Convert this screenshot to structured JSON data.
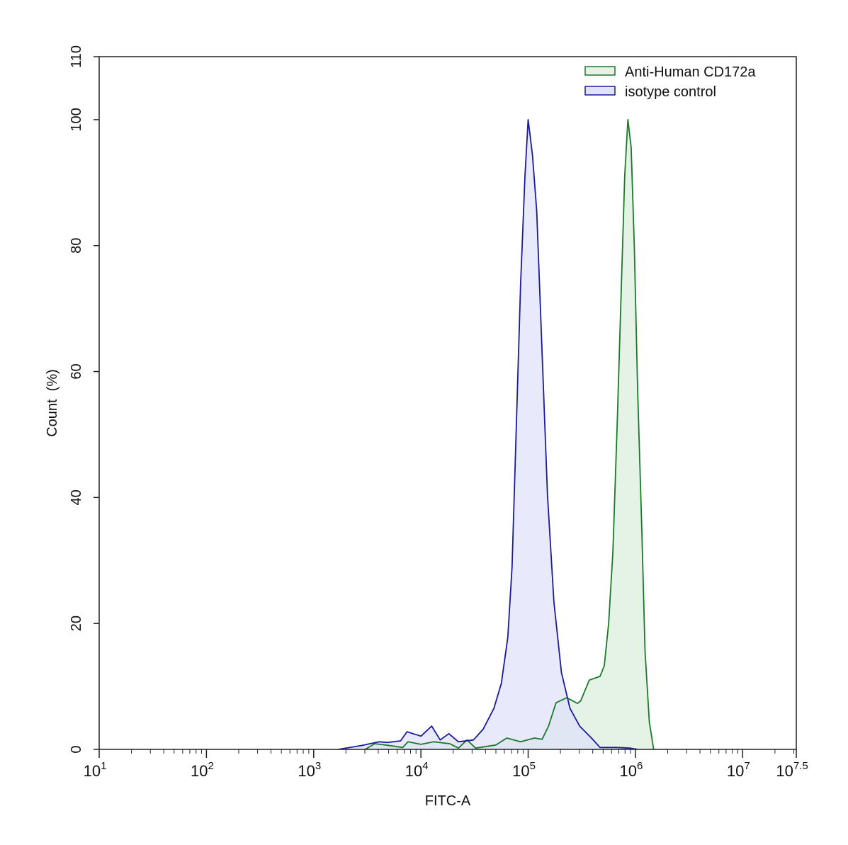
{
  "chart_data": {
    "type": "area",
    "title": "",
    "xlabel": "FITC-A",
    "ylabel": "Count  (%)",
    "x_scale": "log10",
    "xlim_log10": [
      1,
      7.5
    ],
    "ylim": [
      0,
      110
    ],
    "grid": false,
    "legend_position": "top-right",
    "x_ticks": [
      {
        "base": "10",
        "exp": "1",
        "log": 1
      },
      {
        "base": "10",
        "exp": "2",
        "log": 2
      },
      {
        "base": "10",
        "exp": "3",
        "log": 3
      },
      {
        "base": "10",
        "exp": "4",
        "log": 4
      },
      {
        "base": "10",
        "exp": "5",
        "log": 5
      },
      {
        "base": "10",
        "exp": "6",
        "log": 6
      },
      {
        "base": "10",
        "exp": "7",
        "log": 7
      },
      {
        "base": "10",
        "exp": "7.5",
        "log": 7.5
      }
    ],
    "y_ticks": [
      "0",
      "20",
      "40",
      "60",
      "80",
      "100",
      "110"
    ],
    "series": [
      {
        "name": "Anti-Human CD172a",
        "line_color": "#1a7a2a",
        "fill_color": "#e4f3e6",
        "x_log10": [
          3.48,
          3.57,
          3.67,
          3.83,
          3.88,
          4.0,
          4.12,
          4.27,
          4.35,
          4.43,
          4.51,
          4.7,
          4.8,
          4.93,
          5.06,
          5.13,
          5.19,
          5.26,
          5.36,
          5.46,
          5.49,
          5.57,
          5.67,
          5.71,
          5.75,
          5.79,
          5.83,
          5.87,
          5.9,
          5.93,
          5.96,
          5.99,
          6.02,
          6.06,
          6.09,
          6.13,
          6.17
        ],
        "y": [
          0,
          0.9,
          0.7,
          0.3,
          1.2,
          0.8,
          1.2,
          0.9,
          0.2,
          1.5,
          0.2,
          0.7,
          1.8,
          1.2,
          1.8,
          1.6,
          3.7,
          7.4,
          8.2,
          7.3,
          7.7,
          11,
          11.6,
          13.3,
          20,
          31.3,
          51.6,
          74,
          91,
          100,
          95.6,
          79.8,
          57.3,
          34.7,
          15.6,
          4.3,
          0
        ]
      },
      {
        "name": "isotype control",
        "line_color": "#1a1a9a",
        "fill_color": "#e0e2f8",
        "x_log10": [
          3.23,
          3.44,
          3.61,
          3.69,
          3.81,
          3.87,
          4.0,
          4.1,
          4.18,
          4.26,
          4.35,
          4.49,
          4.58,
          4.68,
          4.75,
          4.81,
          4.85,
          4.89,
          4.93,
          4.97,
          5.0,
          5.04,
          5.08,
          5.13,
          5.18,
          5.24,
          5.31,
          5.39,
          5.48,
          5.59,
          5.67,
          5.82,
          5.95,
          6.02
        ],
        "y": [
          0,
          0.6,
          1.2,
          1.1,
          1.35,
          2.8,
          2.1,
          3.7,
          1.5,
          2.5,
          1.2,
          1.5,
          3.2,
          6.5,
          10.5,
          17.8,
          29,
          51.6,
          74,
          91,
          100,
          94.4,
          85.5,
          63,
          40.4,
          23.4,
          12.2,
          6.5,
          3.7,
          1.8,
          0.3,
          0.3,
          0.2,
          0
        ]
      }
    ]
  }
}
